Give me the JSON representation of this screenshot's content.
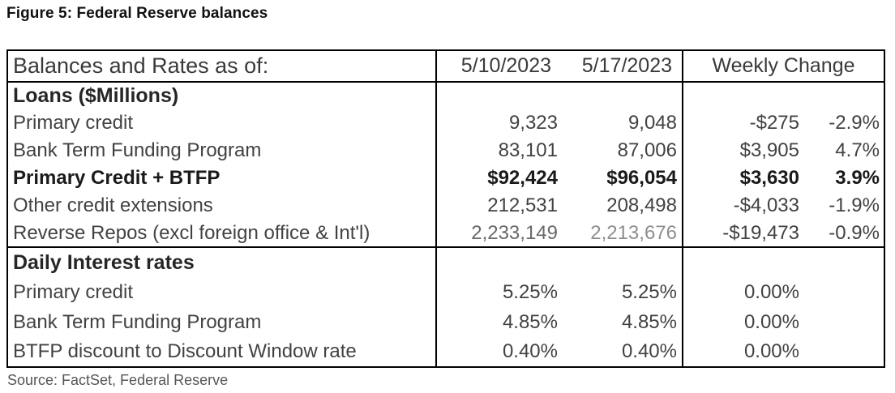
{
  "title": "Figure 5: Federal Reserve balances",
  "source": "Source: FactSet, Federal Reserve",
  "colors": {
    "border": "#000000",
    "body_text": "#424242",
    "muted_value": "#8e8e8e",
    "source_text": "#565656"
  },
  "table": {
    "header": {
      "label": "Balances and Rates as of:",
      "date1": "5/10/2023",
      "date2": "5/17/2023",
      "change": "Weekly Change"
    },
    "rows": [
      {
        "label": "Loans ($Millions)",
        "type": "section"
      },
      {
        "label": "Primary credit",
        "v1": "9,323",
        "v2": "9,048",
        "chg": "-$275",
        "pct": "-2.9%"
      },
      {
        "label": "Bank Term Funding Program",
        "v1": "83,101",
        "v2": "87,006",
        "chg": "$3,905",
        "pct": "4.7%"
      },
      {
        "label": "Primary Credit + BTFP",
        "v1": "$92,424",
        "v2": "$96,054",
        "chg": "$3,630",
        "pct": "3.9%",
        "type": "total"
      },
      {
        "label": "Other credit extensions",
        "v1": "212,531",
        "v2": "208,498",
        "chg": "-$4,033",
        "pct": "-1.9%"
      },
      {
        "label": "Reverse Repos (excl foreign office & Int'l)",
        "v1": "2,233,149",
        "v2": "2,213,676",
        "chg": "-$19,473",
        "pct": "-0.9%",
        "v1_muted": 1,
        "v2_muted": 2
      },
      {
        "label": "Daily Interest rates",
        "type": "section",
        "section_border": true
      },
      {
        "label": "Primary credit",
        "v1": "5.25%",
        "v2": "5.25%",
        "chg": "0.00%",
        "pct": ""
      },
      {
        "label": "Bank Term Funding Program",
        "v1": "4.85%",
        "v2": "4.85%",
        "chg": "0.00%",
        "pct": ""
      },
      {
        "label": "BTFP discount to Discount Window rate",
        "v1": "0.40%",
        "v2": "0.40%",
        "chg": "0.00%",
        "pct": ""
      }
    ]
  }
}
